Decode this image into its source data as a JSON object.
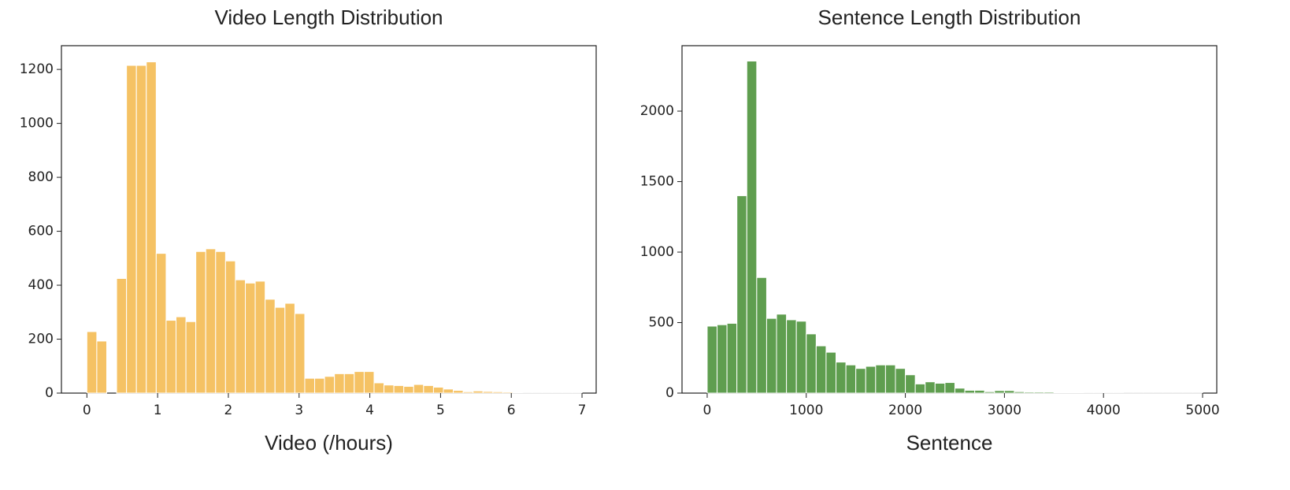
{
  "chart_data": [
    {
      "type": "histogram",
      "title": "Video Length Distribution",
      "xlabel": "Video (/hours)",
      "color": "#f5c264",
      "bins": [
        0,
        0.14,
        0.28,
        0.42,
        0.56,
        0.7,
        0.84,
        0.98,
        1.12,
        1.26,
        1.4,
        1.54,
        1.68,
        1.82,
        1.96,
        2.1,
        2.24,
        2.38,
        2.52,
        2.66,
        2.8,
        2.94,
        3.08,
        3.22,
        3.36,
        3.5,
        3.64,
        3.78,
        3.92,
        4.06,
        4.2,
        4.34,
        4.48,
        4.62,
        4.76,
        4.9,
        5.04,
        5.18,
        5.32,
        5.46,
        5.6,
        5.74,
        5.88,
        6.02,
        6.16,
        6.3,
        6.44,
        6.58,
        6.72,
        6.86,
        7
      ],
      "counts": [
        228,
        193,
        0,
        425,
        1215,
        1215,
        1228,
        518,
        270,
        283,
        265,
        525,
        535,
        525,
        490,
        420,
        408,
        415,
        348,
        318,
        333,
        295,
        55,
        55,
        62,
        72,
        72,
        80,
        80,
        38,
        30,
        28,
        25,
        32,
        28,
        22,
        15,
        10,
        5,
        8,
        6,
        5,
        4,
        2,
        1,
        1,
        1,
        1,
        1,
        1
      ],
      "xlim": [
        -0.36,
        7.2
      ],
      "ylim": [
        0,
        1288
      ],
      "xticks": [
        0,
        1,
        2,
        3,
        4,
        5,
        6,
        7
      ],
      "yticks": [
        0,
        200,
        400,
        600,
        800,
        1000,
        1200
      ]
    },
    {
      "type": "histogram",
      "title": "Sentence Length Distribution",
      "xlabel": "Sentence",
      "color": "#5f9e4f",
      "bins": [
        0,
        100,
        200,
        300,
        400,
        500,
        600,
        700,
        800,
        900,
        1000,
        1100,
        1200,
        1300,
        1400,
        1500,
        1600,
        1700,
        1800,
        1900,
        2000,
        2100,
        2200,
        2300,
        2400,
        2500,
        2600,
        2700,
        2800,
        2900,
        3000,
        3100,
        3200,
        3300,
        3400,
        3500,
        3600,
        3700,
        3800,
        3900,
        4000,
        4100,
        4200,
        4300,
        4400,
        4500,
        4600,
        4700,
        4800,
        4900,
        5000
      ],
      "counts": [
        475,
        485,
        495,
        1400,
        2355,
        820,
        530,
        560,
        520,
        510,
        420,
        335,
        290,
        220,
        200,
        175,
        190,
        200,
        200,
        175,
        130,
        65,
        80,
        70,
        75,
        35,
        20,
        20,
        10,
        18,
        18,
        10,
        8,
        8,
        8,
        5,
        3,
        3,
        2,
        2,
        2,
        2,
        1,
        1,
        1,
        1,
        1,
        1,
        1,
        1
      ],
      "xlim": [
        -254,
        5143
      ],
      "ylim": [
        0,
        2464
      ],
      "xticks": [
        0,
        1000,
        2000,
        3000,
        4000,
        5000
      ],
      "yticks": [
        0,
        500,
        1000,
        1500,
        2000
      ]
    }
  ]
}
